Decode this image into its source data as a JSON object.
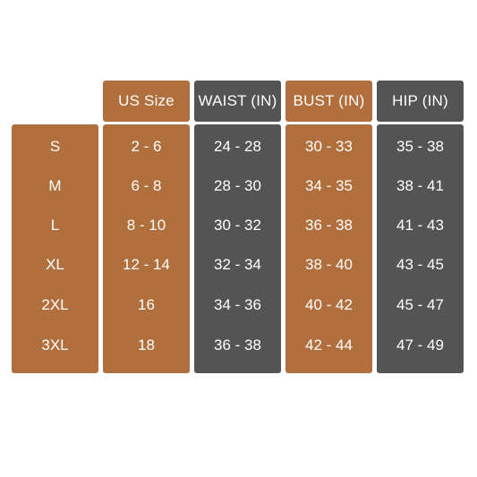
{
  "colors": {
    "tan": "#b06f3c",
    "gray": "#545454",
    "text": "#ffffff",
    "background": "#ffffff"
  },
  "headers": [
    "US Size",
    "WAIST (IN)",
    "BUST (IN)",
    "HIP (IN)"
  ],
  "sizes": [
    "S",
    "M",
    "L",
    "XL",
    "2XL",
    "3XL"
  ],
  "columns": {
    "us_size": [
      "2 - 6",
      "6 - 8",
      "8 - 10",
      "12 - 14",
      "16",
      "18"
    ],
    "waist": [
      "24 - 28",
      "28 - 30",
      "30 - 32",
      "32 - 34",
      "34 - 36",
      "36 - 38"
    ],
    "bust": [
      "30 - 33",
      "34 - 35",
      "36 - 38",
      "38 - 40",
      "40 - 42",
      "42 - 44"
    ],
    "hip": [
      "35 - 38",
      "38 - 41",
      "41 - 43",
      "43 - 45",
      "45 - 47",
      "47 - 49"
    ]
  }
}
